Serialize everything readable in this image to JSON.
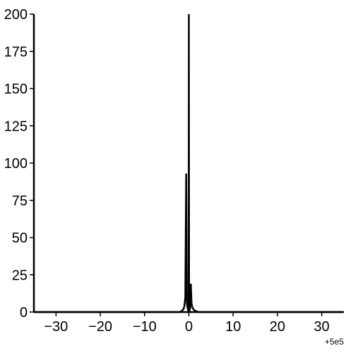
{
  "chart_data": {
    "type": "line",
    "title": "",
    "xlabel": "",
    "ylabel": "",
    "x_offset_label": "+5e5",
    "xlim": [
      -35,
      35
    ],
    "ylim": [
      0,
      200
    ],
    "x_ticks": [
      -30,
      -20,
      -10,
      0,
      10,
      20,
      30
    ],
    "x_tick_labels": [
      "−30",
      "−20",
      "−10",
      "0",
      "10",
      "20",
      "30"
    ],
    "y_ticks": [
      0,
      25,
      50,
      75,
      100,
      125,
      150,
      175,
      200
    ],
    "y_tick_labels": [
      "0",
      "25",
      "50",
      "75",
      "100",
      "125",
      "150",
      "175",
      "200"
    ],
    "grid": false,
    "line_color": "#000000",
    "series": [
      {
        "x": [
          -35,
          -2.0,
          -1.5,
          -1.2,
          -1.0,
          -0.8,
          -0.6,
          -0.45,
          -0.3,
          -0.15,
          -0.05,
          0.0,
          0.05,
          0.15,
          0.3,
          0.45,
          0.6,
          0.8,
          1.0,
          1.3,
          1.7,
          2.2,
          35
        ],
        "y": [
          0,
          0,
          1,
          2,
          4,
          10,
          93,
          6,
          3,
          1,
          0,
          200,
          0,
          1,
          3,
          19,
          6,
          3,
          2,
          1,
          0.5,
          0,
          0
        ]
      }
    ]
  }
}
